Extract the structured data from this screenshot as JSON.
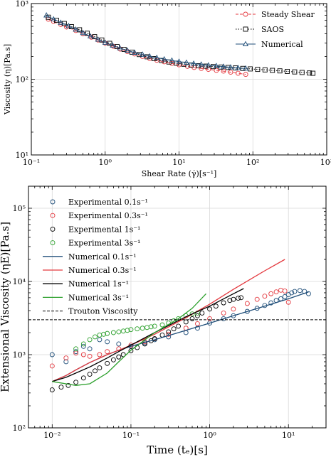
{
  "chart_data": [
    {
      "type": "line",
      "xscale": "log",
      "yscale": "log",
      "xlim": [
        0.1,
        1000
      ],
      "ylim": [
        10,
        1000
      ],
      "xlabel": "Shear Rate (γ̇)[s⁻¹]",
      "ylabel": "Viscosity (η)[Pa.s]",
      "x_ticklabels": [
        "10⁻¹",
        "10⁰",
        "10¹",
        "10²",
        "10³"
      ],
      "y_ticklabels": [
        "10¹",
        "10²",
        "10³"
      ],
      "grid": true,
      "legend_position": "top-right",
      "series": [
        {
          "name": "Steady Shear",
          "color": "#e4393f",
          "style": "dashed-circle",
          "x": [
            0.17,
            0.2,
            0.25,
            0.3,
            0.4,
            0.5,
            0.65,
            0.8,
            1.0,
            1.3,
            1.6,
            2.0,
            2.5,
            3.2,
            4.0,
            5.0,
            6.3,
            8.0,
            10,
            13,
            16,
            20,
            25,
            32,
            40,
            50,
            63,
            80
          ],
          "y": [
            620,
            580,
            530,
            490,
            440,
            400,
            360,
            330,
            300,
            272,
            250,
            232,
            216,
            200,
            188,
            178,
            170,
            162,
            155,
            148,
            143,
            139,
            135,
            131,
            128,
            124,
            120,
            116
          ]
        },
        {
          "name": "SAOS",
          "color": "#000000",
          "style": "dotted-square",
          "x": [
            0.17,
            0.22,
            0.28,
            0.35,
            0.45,
            0.57,
            0.72,
            0.9,
            1.15,
            1.45,
            1.8,
            2.3,
            2.9,
            3.7,
            4.6,
            5.8,
            7.3,
            9.2,
            11.6,
            14.6,
            18.4,
            23,
            29,
            37,
            46,
            58,
            73,
            92,
            116,
            146,
            184,
            232,
            292,
            368,
            463,
            583,
            650
          ],
          "y": [
            660,
            600,
            545,
            495,
            450,
            405,
            365,
            330,
            298,
            270,
            248,
            228,
            212,
            198,
            187,
            177,
            169,
            163,
            158,
            154,
            151,
            149,
            147,
            145,
            143,
            141,
            139,
            137,
            135,
            133,
            131,
            129,
            127,
            125,
            123,
            121,
            120
          ]
        },
        {
          "name": "Numerical",
          "color": "#1f4e79",
          "style": "solid-triangle",
          "x": [
            0.16,
            0.2,
            0.25,
            0.32,
            0.4,
            0.5,
            0.63,
            0.8,
            1.0,
            1.26,
            1.58,
            2.0,
            2.5,
            3.2,
            4.0,
            5.0,
            6.3,
            8.0,
            10,
            12.6,
            15.8,
            20,
            25,
            32,
            40,
            50,
            63,
            80
          ],
          "y": [
            700,
            620,
            560,
            505,
            455,
            410,
            370,
            335,
            305,
            280,
            258,
            240,
            225,
            212,
            201,
            192,
            184,
            177,
            171,
            166,
            161,
            157,
            153,
            150,
            147,
            144,
            141,
            139
          ]
        }
      ]
    },
    {
      "type": "scatter",
      "xscale": "log",
      "yscale": "log",
      "xlim": [
        0.005,
        30
      ],
      "ylim": [
        100,
        200000
      ],
      "xlabel": "Time (tₑ)[s]",
      "ylabel": "Extensional Viscosity (ηE)[Pa.s]",
      "x_ticklabels": [
        "10⁻²",
        "10⁻¹",
        "10⁰",
        "10¹"
      ],
      "y_ticklabels": [
        "10²",
        "10³",
        "10⁴",
        "10⁵"
      ],
      "grid": true,
      "legend_position": "top-left",
      "trouton_value": 3000,
      "series": [
        {
          "name": "Experimental 0.1s⁻¹",
          "kind": "markers",
          "color": "#1f4e79",
          "x": [
            0.01,
            0.015,
            0.02,
            0.025,
            0.03,
            0.04,
            0.05,
            0.07,
            0.1,
            0.15,
            0.2,
            0.3,
            0.5,
            0.7,
            1.0,
            1.5,
            2.0,
            3.0,
            4.0,
            5.0,
            6.0,
            7.0,
            8.0,
            9.0,
            10,
            11,
            12,
            14,
            16,
            18
          ],
          "y": [
            1000,
            800,
            1100,
            1300,
            1200,
            1600,
            1500,
            1400,
            1300,
            1450,
            1600,
            1750,
            2000,
            2300,
            2700,
            3100,
            3400,
            3900,
            4300,
            4700,
            5100,
            5500,
            5800,
            6200,
            6600,
            7000,
            7300,
            7500,
            7300,
            6800
          ]
        },
        {
          "name": "Experimental 0.3s⁻¹",
          "kind": "markers",
          "color": "#e4393f",
          "x": [
            0.01,
            0.015,
            0.02,
            0.025,
            0.03,
            0.04,
            0.05,
            0.07,
            0.1,
            0.15,
            0.2,
            0.3,
            0.5,
            0.7,
            1.0,
            1.5,
            2.0,
            3.0,
            4.0,
            5.0,
            6.0,
            7.0,
            8.0,
            9.0,
            10
          ],
          "y": [
            700,
            900,
            1050,
            1000,
            950,
            1000,
            1100,
            1200,
            1350,
            1500,
            1650,
            1900,
            2300,
            2650,
            3100,
            3700,
            4200,
            5000,
            5700,
            6300,
            6800,
            7200,
            7600,
            7400,
            5200
          ]
        },
        {
          "name": "Experimental 1s⁻¹",
          "kind": "markers",
          "color": "#000000",
          "x": [
            0.01,
            0.013,
            0.016,
            0.02,
            0.025,
            0.03,
            0.035,
            0.04,
            0.05,
            0.06,
            0.07,
            0.08,
            0.1,
            0.12,
            0.15,
            0.18,
            0.2,
            0.25,
            0.3,
            0.35,
            0.4,
            0.5,
            0.6,
            0.7,
            0.8,
            1.0,
            1.2,
            1.5,
            1.8,
            2.0,
            2.3,
            2.5
          ],
          "y": [
            330,
            360,
            380,
            420,
            480,
            540,
            600,
            660,
            760,
            850,
            930,
            1000,
            1130,
            1250,
            1400,
            1550,
            1650,
            1850,
            2050,
            2250,
            2450,
            2800,
            3100,
            3400,
            3700,
            4200,
            4600,
            5100,
            5500,
            5700,
            5900,
            6000
          ]
        },
        {
          "name": "Experimental 3s⁻¹",
          "kind": "markers",
          "color": "#2ca02c",
          "x": [
            0.02,
            0.025,
            0.03,
            0.035,
            0.04,
            0.045,
            0.05,
            0.06,
            0.07,
            0.08,
            0.09,
            0.1,
            0.12,
            0.14,
            0.16,
            0.18,
            0.2,
            0.25,
            0.3,
            0.35,
            0.4,
            0.5,
            0.6,
            0.7
          ],
          "y": [
            1200,
            1400,
            1600,
            1750,
            1850,
            1900,
            1950,
            2000,
            2050,
            2100,
            2150,
            2200,
            2250,
            2300,
            2350,
            2400,
            2450,
            2550,
            2700,
            2900,
            3100,
            3400,
            3600,
            3700
          ]
        },
        {
          "name": "Numerical 0.1s⁻¹",
          "kind": "line",
          "color": "#1f4e79",
          "x": [
            0.01,
            0.015,
            0.02,
            0.03,
            0.05,
            0.07,
            0.1,
            0.2,
            0.5,
            1,
            2,
            5,
            10,
            18
          ],
          "y": [
            430,
            520,
            620,
            780,
            1000,
            1150,
            1300,
            1600,
            2150,
            2700,
            3400,
            4600,
            5800,
            7200
          ]
        },
        {
          "name": "Numerical 0.3s⁻¹",
          "kind": "line",
          "color": "#e4393f",
          "x": [
            0.01,
            0.015,
            0.02,
            0.03,
            0.05,
            0.07,
            0.1,
            0.2,
            0.5,
            1,
            2,
            5,
            9
          ],
          "y": [
            430,
            520,
            620,
            780,
            1000,
            1150,
            1350,
            1900,
            3200,
            4900,
            7800,
            14000,
            20000
          ]
        },
        {
          "name": "Numerical 1s⁻¹",
          "kind": "line",
          "color": "#000000",
          "x": [
            0.01,
            0.015,
            0.02,
            0.03,
            0.05,
            0.07,
            0.1,
            0.2,
            0.5,
            1,
            2,
            2.7
          ],
          "y": [
            430,
            490,
            560,
            680,
            900,
            1100,
            1350,
            2000,
            3300,
            4600,
            6800,
            8000
          ]
        },
        {
          "name": "Numerical 3s⁻¹",
          "kind": "line",
          "color": "#2ca02c",
          "x": [
            0.01,
            0.015,
            0.02,
            0.03,
            0.05,
            0.07,
            0.1,
            0.2,
            0.4,
            0.6,
            0.9
          ],
          "y": [
            430,
            400,
            380,
            400,
            560,
            800,
            1150,
            2000,
            3100,
            4300,
            6800
          ]
        },
        {
          "name": "Trouton Viscosity",
          "kind": "hline",
          "color": "#000000",
          "y": 3000
        }
      ]
    }
  ]
}
